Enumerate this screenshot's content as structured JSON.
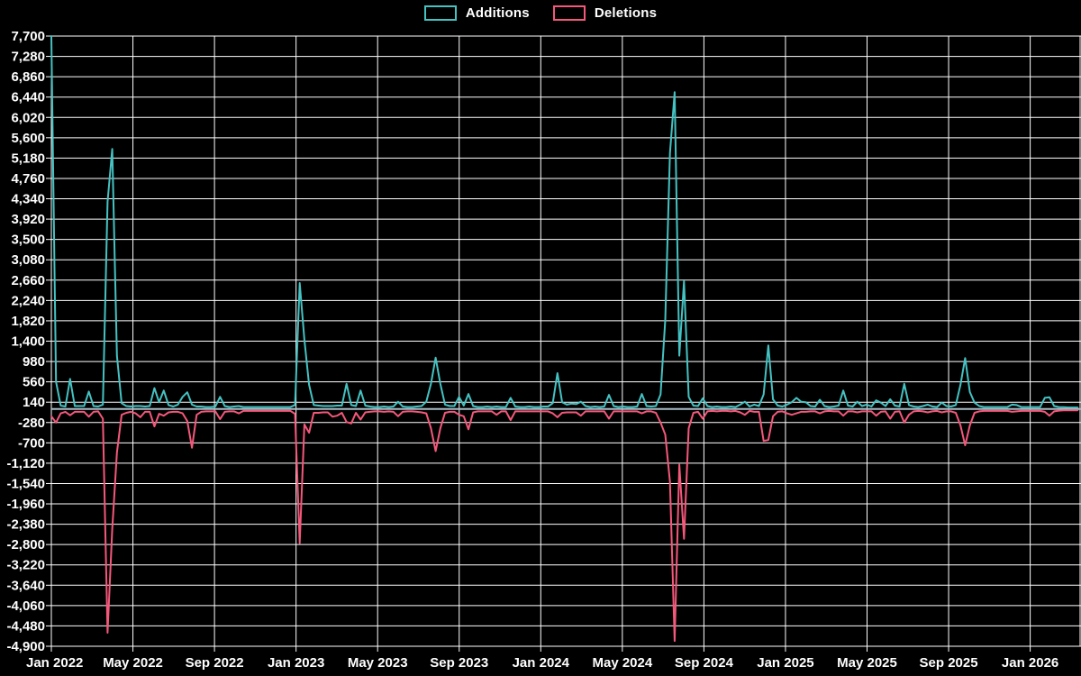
{
  "legend": {
    "items": [
      {
        "label": "Additions",
        "color": "#45c2c2"
      },
      {
        "label": "Deletions",
        "color": "#f4587b"
      }
    ]
  },
  "chart_data": {
    "type": "line",
    "title": "",
    "xlabel": "",
    "ylabel": "",
    "x_unit": "week",
    "grid": true,
    "legend_position": "top-center",
    "background_color": "#000000",
    "grid_color": "#ffffff",
    "text_color": "#ffffff",
    "zero_line_color": "#a9bcc4",
    "y_max": 7700,
    "y_min": -4900,
    "y_tick_step": 420,
    "x_tick_labels": [
      "Jan 2022",
      "May 2022",
      "Sep 2022",
      "Jan 2023",
      "May 2023",
      "Sep 2023",
      "Jan 2024",
      "May 2024",
      "Sep 2024",
      "Jan 2025",
      "May 2025",
      "Sep 2025",
      "Jan 2026"
    ],
    "series": [
      {
        "name": "Additions",
        "color": "#45c2c2",
        "values": [
          7700,
          560,
          70,
          50,
          620,
          60,
          60,
          60,
          360,
          60,
          50,
          90,
          4280,
          5370,
          1100,
          120,
          60,
          50,
          60,
          60,
          50,
          60,
          430,
          140,
          380,
          80,
          50,
          90,
          250,
          345,
          90,
          50,
          50,
          40,
          40,
          50,
          250,
          60,
          40,
          50,
          60,
          40,
          40,
          40,
          40,
          40,
          40,
          40,
          40,
          40,
          40,
          40,
          80,
          2600,
          1430,
          500,
          80,
          70,
          60,
          60,
          60,
          70,
          70,
          520,
          80,
          60,
          380,
          70,
          50,
          40,
          40,
          50,
          40,
          50,
          150,
          50,
          40,
          40,
          50,
          60,
          150,
          520,
          1060,
          520,
          90,
          60,
          60,
          250,
          70,
          310,
          60,
          40,
          40,
          50,
          40,
          50,
          40,
          40,
          230,
          50,
          40,
          40,
          50,
          40,
          40,
          50,
          50,
          120,
          740,
          140,
          90,
          110,
          100,
          150,
          60,
          40,
          50,
          40,
          50,
          290,
          60,
          40,
          50,
          40,
          40,
          50,
          310,
          60,
          50,
          60,
          300,
          1840,
          5280,
          6540,
          1100,
          2640,
          250,
          70,
          60,
          220,
          60,
          40,
          50,
          40,
          40,
          50,
          40,
          90,
          150,
          50,
          90,
          60,
          300,
          1310,
          200,
          70,
          50,
          90,
          140,
          230,
          150,
          140,
          60,
          50,
          190,
          60,
          40,
          50,
          70,
          380,
          70,
          50,
          150,
          60,
          90,
          50,
          180,
          130,
          60,
          200,
          70,
          50,
          520,
          80,
          50,
          40,
          60,
          90,
          50,
          40,
          130,
          60,
          50,
          80,
          500,
          1050,
          350,
          130,
          60,
          40,
          40,
          40,
          40,
          40,
          40,
          90,
          80,
          40,
          40,
          40,
          40,
          40,
          230,
          240,
          60,
          40,
          35,
          30,
          30,
          30
        ]
      },
      {
        "name": "Deletions",
        "color": "#f4587b",
        "values": [
          -150,
          -280,
          -90,
          -60,
          -130,
          -60,
          -60,
          -60,
          -160,
          -60,
          -50,
          -200,
          -4620,
          -2480,
          -900,
          -120,
          -80,
          -60,
          -90,
          -170,
          -60,
          -60,
          -360,
          -100,
          -140,
          -70,
          -60,
          -60,
          -90,
          -250,
          -800,
          -120,
          -60,
          -50,
          -50,
          -50,
          -210,
          -60,
          -50,
          -50,
          -90,
          -40,
          -40,
          -40,
          -40,
          -40,
          -40,
          -40,
          -40,
          -40,
          -40,
          -40,
          -100,
          -2770,
          -320,
          -490,
          -80,
          -80,
          -70,
          -70,
          -160,
          -140,
          -80,
          -270,
          -300,
          -80,
          -220,
          -70,
          -60,
          -50,
          -50,
          -60,
          -50,
          -60,
          -150,
          -60,
          -50,
          -50,
          -60,
          -70,
          -90,
          -400,
          -870,
          -400,
          -80,
          -60,
          -60,
          -120,
          -150,
          -420,
          -70,
          -50,
          -50,
          -50,
          -50,
          -120,
          -50,
          -50,
          -230,
          -50,
          -50,
          -50,
          -50,
          -50,
          -50,
          -50,
          -50,
          -90,
          -170,
          -80,
          -70,
          -70,
          -70,
          -140,
          -50,
          -50,
          -50,
          -50,
          -50,
          -200,
          -50,
          -50,
          -50,
          -50,
          -50,
          -50,
          -90,
          -50,
          -50,
          -80,
          -280,
          -530,
          -1500,
          -4790,
          -1150,
          -2680,
          -400,
          -80,
          -60,
          -200,
          -50,
          -40,
          -50,
          -40,
          -40,
          -50,
          -40,
          -70,
          -120,
          -40,
          -60,
          -60,
          -660,
          -640,
          -150,
          -60,
          -50,
          -90,
          -120,
          -90,
          -60,
          -60,
          -50,
          -50,
          -90,
          -50,
          -40,
          -50,
          -50,
          -140,
          -50,
          -50,
          -70,
          -50,
          -50,
          -50,
          -140,
          -60,
          -50,
          -200,
          -60,
          -50,
          -280,
          -120,
          -50,
          -40,
          -50,
          -70,
          -50,
          -40,
          -70,
          -50,
          -50,
          -80,
          -340,
          -750,
          -340,
          -80,
          -50,
          -40,
          -40,
          -40,
          -40,
          -40,
          -40,
          -60,
          -50,
          -40,
          -40,
          -40,
          -40,
          -40,
          -60,
          -140,
          -50,
          -35,
          -30,
          -30,
          -30,
          -30
        ]
      }
    ]
  }
}
